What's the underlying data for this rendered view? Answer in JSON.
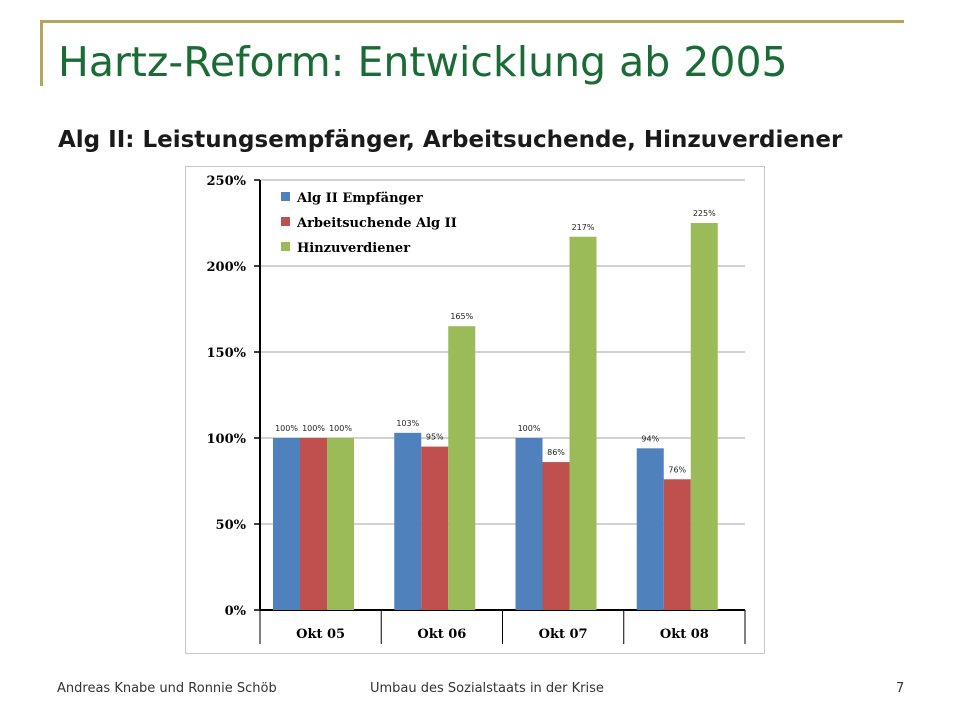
{
  "slide": {
    "title": "Hartz-Reform: Entwicklung ab 2005",
    "subtitle": "Alg II: Leistungsempfänger, Arbeitsuchende, Hinzuverdiener"
  },
  "footer": {
    "authors": "Andreas Knabe und Ronnie Schöb",
    "topic": "Umbau des Sozialstaats in der Krise",
    "page_number": "7"
  },
  "colors": {
    "title": "#1a6b35",
    "frame": "#b3a65c"
  },
  "chart_data": {
    "type": "bar",
    "categories": [
      "Okt 05",
      "Okt 06",
      "Okt 07",
      "Okt 08"
    ],
    "series": [
      {
        "name": "Alg II Empfänger",
        "values": [
          100,
          103,
          100,
          94
        ],
        "labels": [
          "100%",
          "103%",
          "100%",
          "94%"
        ],
        "color": "#4f81bd"
      },
      {
        "name": "Arbeitsuchende Alg II",
        "values": [
          100,
          95,
          86,
          76
        ],
        "labels": [
          "100%",
          "95%",
          "86%",
          "76%"
        ],
        "color": "#c0504d"
      },
      {
        "name": "Hinzuverdiener",
        "values": [
          100,
          165,
          217,
          225
        ],
        "labels": [
          "100%",
          "165%",
          "217%",
          "225%"
        ],
        "color": "#9bbb59"
      }
    ],
    "yticks": [
      0,
      50,
      100,
      150,
      200,
      250
    ],
    "ytick_labels": [
      "0%",
      "50%",
      "100%",
      "150%",
      "200%",
      "250%"
    ],
    "ylim": [
      0,
      250
    ],
    "grid": true,
    "legend": "top-left"
  }
}
